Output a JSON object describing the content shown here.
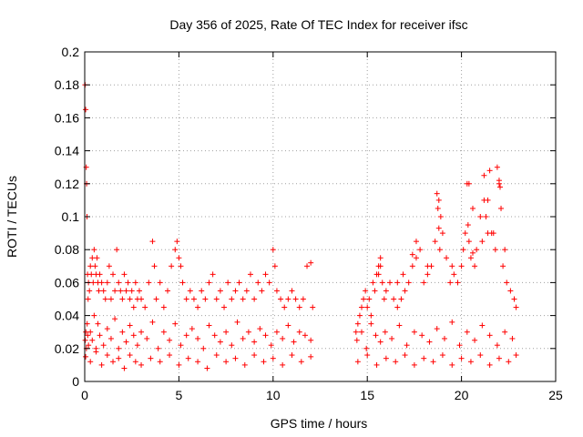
{
  "chart_data": {
    "type": "scatter",
    "title": "Day 356 of 2025, Rate Of TEC Index for receiver ifsc",
    "xlabel": "GPS time / hours",
    "ylabel": "ROTI / TECUs",
    "xlim": [
      0,
      25
    ],
    "ylim": [
      0,
      0.2
    ],
    "xticks": [
      "0",
      "5",
      "10",
      "15",
      "20",
      "25"
    ],
    "yticks": [
      "0",
      "0.02",
      "0.04",
      "0.06",
      "0.08",
      "0.1",
      "0.12",
      "0.14",
      "0.16",
      "0.18",
      "0.2"
    ],
    "grid": true,
    "marker": "plus",
    "color": "#ff0000",
    "series": [
      {
        "x": [
          0.02,
          0.05,
          0.08,
          0.1,
          0.12,
          0.15,
          0.18,
          0.2,
          0.25,
          0.3,
          0.35,
          0.4,
          0.45,
          0.5,
          0.55,
          0.6,
          0.65,
          0.7,
          0.75,
          0.8,
          0.9,
          1.0,
          1.1,
          1.2,
          1.3,
          1.4,
          1.5,
          1.6,
          1.7,
          1.8,
          1.9,
          2.0,
          2.1,
          2.2,
          2.3,
          2.4,
          2.5,
          2.6,
          2.7,
          2.8,
          2.9,
          3.0,
          3.2,
          3.4,
          3.6,
          3.7,
          3.8,
          4.0,
          4.2,
          4.4,
          4.6,
          4.8,
          4.9,
          5.0,
          5.1,
          5.2,
          5.4,
          5.6,
          5.8,
          6.0,
          6.2,
          6.4,
          6.6,
          6.8,
          7.0,
          7.2,
          7.4,
          7.6,
          7.8,
          8.0,
          8.2,
          8.4,
          8.6,
          8.8,
          9.0,
          9.2,
          9.4,
          9.6,
          9.8,
          10.0,
          10.1,
          10.2,
          10.4,
          10.6,
          10.8,
          11.0,
          11.2,
          11.4,
          11.6,
          11.8,
          12.0,
          12.1,
          0.03,
          0.06,
          0.09,
          0.13,
          0.16,
          0.2,
          0.3,
          0.4,
          0.5,
          0.6,
          0.7,
          0.8,
          1.0,
          1.2,
          1.4,
          1.6,
          1.8,
          2.0,
          2.2,
          2.4,
          2.6,
          2.8,
          3.0,
          3.3,
          3.6,
          3.9,
          4.2,
          4.5,
          4.8,
          5.1,
          5.4,
          5.7,
          6.0,
          6.3,
          6.6,
          6.9,
          7.2,
          7.5,
          7.8,
          8.1,
          8.4,
          8.7,
          9.0,
          9.3,
          9.6,
          9.9,
          10.2,
          10.5,
          10.8,
          11.1,
          11.4,
          11.7,
          12.0,
          0.05,
          0.3,
          0.6,
          0.9,
          1.2,
          1.5,
          1.8,
          2.1,
          2.4,
          2.7,
          3.0,
          3.5,
          4.0,
          4.5,
          5.0,
          5.5,
          6.0,
          6.5,
          7.0,
          7.5,
          8.0,
          8.5,
          9.0,
          9.5,
          10.0,
          10.5,
          11.0,
          11.5,
          12.0,
          14.4,
          14.5,
          14.6,
          14.7,
          14.8,
          14.9,
          15.0,
          15.1,
          15.2,
          15.3,
          15.4,
          15.5,
          15.6,
          15.7,
          15.8,
          15.9,
          16.0,
          16.2,
          16.4,
          16.6,
          16.8,
          17.0,
          17.2,
          17.4,
          17.6,
          17.8,
          18.0,
          18.2,
          18.4,
          18.6,
          18.8,
          18.9,
          19.0,
          19.2,
          19.4,
          19.6,
          19.8,
          20.0,
          20.2,
          20.4,
          20.6,
          20.8,
          21.0,
          21.2,
          21.4,
          21.6,
          21.8,
          22.0,
          22.2,
          22.4,
          22.6,
          22.8,
          22.9,
          14.45,
          14.7,
          14.95,
          15.2,
          15.45,
          15.7,
          15.95,
          16.3,
          16.7,
          17.1,
          17.5,
          17.9,
          18.3,
          18.7,
          19.1,
          19.5,
          19.9,
          20.3,
          20.7,
          21.1,
          21.5,
          21.9,
          22.3,
          22.7,
          14.5,
          15.0,
          15.5,
          16.0,
          16.5,
          17.0,
          17.5,
          18.0,
          18.5,
          19.0,
          19.5,
          20.0,
          20.5,
          21.0,
          21.5,
          22.0,
          22.5,
          22.9,
          18.7,
          18.75,
          18.8,
          18.85,
          20.3,
          20.35,
          20.4,
          20.5,
          20.6,
          20.7,
          21.2,
          21.3,
          21.4,
          21.5,
          21.9,
          22.0,
          22.05,
          22.1,
          18.2,
          17.6,
          17.4,
          15.6,
          15.7,
          16.6,
          16.9,
          19.5,
          20.1,
          21.1,
          21.7,
          22.3
        ],
        "y": [
          0.18,
          0.165,
          0.13,
          0.12,
          0.1,
          0.065,
          0.05,
          0.06,
          0.055,
          0.07,
          0.065,
          0.075,
          0.06,
          0.08,
          0.07,
          0.065,
          0.075,
          0.06,
          0.055,
          0.065,
          0.06,
          0.055,
          0.05,
          0.06,
          0.07,
          0.05,
          0.065,
          0.055,
          0.08,
          0.06,
          0.055,
          0.05,
          0.065,
          0.055,
          0.06,
          0.05,
          0.055,
          0.045,
          0.06,
          0.05,
          0.055,
          0.05,
          0.045,
          0.06,
          0.085,
          0.07,
          0.05,
          0.06,
          0.045,
          0.055,
          0.07,
          0.08,
          0.085,
          0.075,
          0.07,
          0.06,
          0.05,
          0.055,
          0.05,
          0.045,
          0.055,
          0.05,
          0.06,
          0.065,
          0.05,
          0.055,
          0.045,
          0.06,
          0.05,
          0.055,
          0.06,
          0.05,
          0.055,
          0.065,
          0.05,
          0.06,
          0.055,
          0.065,
          0.06,
          0.08,
          0.07,
          0.055,
          0.05,
          0.045,
          0.05,
          0.055,
          0.05,
          0.045,
          0.05,
          0.07,
          0.072,
          0.045,
          0.025,
          0.03,
          0.02,
          0.035,
          0.028,
          0.022,
          0.03,
          0.025,
          0.04,
          0.02,
          0.035,
          0.028,
          0.022,
          0.032,
          0.026,
          0.038,
          0.02,
          0.03,
          0.024,
          0.034,
          0.028,
          0.022,
          0.03,
          0.026,
          0.036,
          0.02,
          0.03,
          0.025,
          0.035,
          0.022,
          0.028,
          0.032,
          0.026,
          0.02,
          0.034,
          0.028,
          0.024,
          0.03,
          0.022,
          0.036,
          0.026,
          0.03,
          0.024,
          0.032,
          0.028,
          0.022,
          0.03,
          0.026,
          0.034,
          0.024,
          0.03,
          0.028,
          0.025,
          0.015,
          0.012,
          0.018,
          0.01,
          0.016,
          0.012,
          0.014,
          0.008,
          0.016,
          0.012,
          0.01,
          0.014,
          0.012,
          0.016,
          0.01,
          0.014,
          0.012,
          0.008,
          0.016,
          0.012,
          0.014,
          0.01,
          0.016,
          0.012,
          0.014,
          0.01,
          0.016,
          0.012,
          0.015,
          0.03,
          0.035,
          0.04,
          0.045,
          0.05,
          0.055,
          0.045,
          0.05,
          0.04,
          0.06,
          0.055,
          0.065,
          0.07,
          0.075,
          0.06,
          0.05,
          0.055,
          0.06,
          0.05,
          0.045,
          0.05,
          0.055,
          0.06,
          0.07,
          0.075,
          0.08,
          0.06,
          0.065,
          0.07,
          0.085,
          0.11,
          0.1,
          0.09,
          0.075,
          0.06,
          0.065,
          0.06,
          0.07,
          0.09,
          0.12,
          0.105,
          0.08,
          0.1,
          0.125,
          0.11,
          0.09,
          0.08,
          0.12,
          0.07,
          0.06,
          0.055,
          0.05,
          0.045,
          0.025,
          0.03,
          0.02,
          0.035,
          0.028,
          0.024,
          0.03,
          0.026,
          0.034,
          0.022,
          0.03,
          0.028,
          0.024,
          0.032,
          0.026,
          0.036,
          0.022,
          0.03,
          0.025,
          0.034,
          0.028,
          0.022,
          0.03,
          0.026,
          0.012,
          0.016,
          0.01,
          0.014,
          0.012,
          0.016,
          0.01,
          0.014,
          0.012,
          0.016,
          0.01,
          0.014,
          0.012,
          0.016,
          0.01,
          0.014,
          0.012,
          0.016,
          0.114,
          0.105,
          0.093,
          0.08,
          0.12,
          0.095,
          0.085,
          0.075,
          0.078,
          0.07,
          0.11,
          0.1,
          0.09,
          0.128,
          0.13,
          0.122,
          0.118,
          0.105,
          0.07,
          0.085,
          0.077,
          0.065,
          0.07,
          0.06,
          0.065,
          0.07,
          0.08,
          0.085,
          0.09,
          0.08
        ]
      }
    ]
  }
}
